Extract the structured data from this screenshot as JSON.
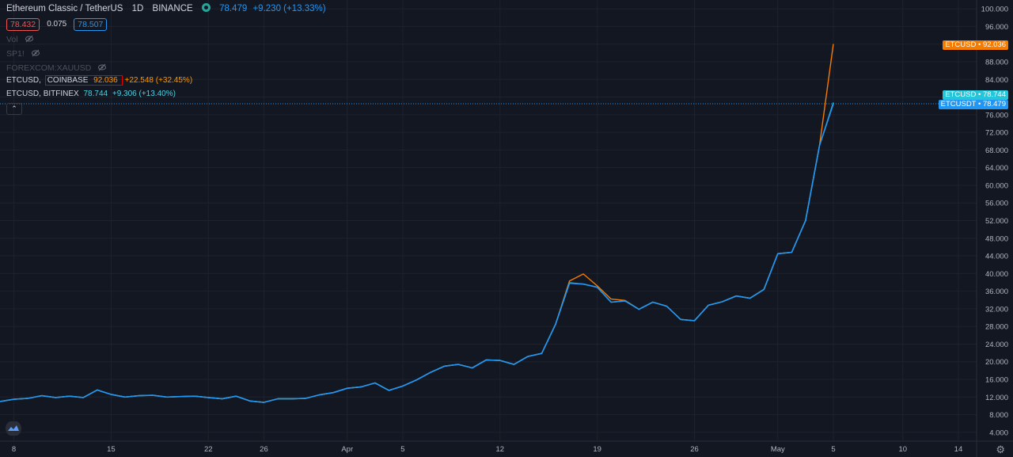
{
  "header": {
    "title": "Ethereum Classic / TetherUS",
    "interval": "1D",
    "exchange": "BINANCE",
    "last_price": "78.479",
    "change": "+9.230 (+13.33%)",
    "bid": "78.432",
    "spread": "0.075",
    "ask": "78.507"
  },
  "indicators": {
    "vol": "Vol",
    "sp1": "SP1!",
    "forex": "FOREXCOM:XAUUSD"
  },
  "compare": [
    {
      "symbol": "ETCUSD,",
      "exchange": "COINBASE",
      "price": "92.036",
      "change": "+22.548 (+32.45%)"
    },
    {
      "symbol": "ETCUSD,",
      "exchange": "BITFINEX",
      "price": "78.744",
      "change": "+9.306 (+13.40%)"
    }
  ],
  "scale_tags": [
    {
      "label": "ETCUSD",
      "value": "92.036",
      "color": "#f57c00"
    },
    {
      "label": "ETCUSD",
      "value": "78.744",
      "color": "#26c6da"
    },
    {
      "label": "ETCUSDT",
      "value": "78.479",
      "color": "#2196f3"
    }
  ],
  "chart_data": {
    "type": "line",
    "ylim": [
      2,
      102
    ],
    "yticks": [
      "100.000",
      "96.000",
      "92.000",
      "88.000",
      "84.000",
      "80.000",
      "76.000",
      "72.000",
      "68.000",
      "64.000",
      "60.000",
      "56.000",
      "52.000",
      "48.000",
      "44.000",
      "40.000",
      "36.000",
      "32.000",
      "28.000",
      "24.000",
      "20.000",
      "16.000",
      "12.000",
      "8.000",
      "4.000"
    ],
    "xlim": [
      0,
      61
    ],
    "xticks": [
      {
        "label": "8",
        "day": 1
      },
      {
        "label": "15",
        "day": 8
      },
      {
        "label": "22",
        "day": 15
      },
      {
        "label": "26",
        "day": 19
      },
      {
        "label": "Apr",
        "day": 25
      },
      {
        "label": "5",
        "day": 29
      },
      {
        "label": "12",
        "day": 36
      },
      {
        "label": "19",
        "day": 43
      },
      {
        "label": "26",
        "day": 50
      },
      {
        "label": "May",
        "day": 56
      },
      {
        "label": "5",
        "day": 60
      },
      {
        "label": "10",
        "day": 65
      },
      {
        "label": "14",
        "day": 69
      }
    ],
    "series": [
      {
        "color": "#2196f3",
        "values": [
          11.0,
          11.5,
          11.7,
          12.3,
          11.9,
          12.2,
          11.9,
          13.6,
          12.6,
          12.0,
          12.3,
          12.4,
          12.0,
          12.1,
          12.2,
          11.9,
          11.6,
          12.2,
          11.1,
          10.8,
          11.6,
          11.6,
          11.7,
          12.5,
          13.0,
          14.0,
          14.3,
          15.2,
          13.5,
          14.5,
          15.9,
          17.6,
          19.0,
          19.4,
          18.6,
          20.4,
          20.3,
          19.4,
          21.2,
          21.9,
          28.5,
          37.8,
          37.6,
          36.9,
          33.5,
          33.8,
          31.9,
          33.5,
          32.6,
          29.6,
          29.3,
          32.8,
          33.6,
          34.9,
          34.4,
          36.4,
          44.5,
          44.8,
          52.0,
          69.0,
          78.479
        ]
      },
      {
        "color": "#f57c00",
        "values": [
          11.0,
          11.5,
          11.7,
          12.3,
          11.9,
          12.2,
          11.9,
          13.6,
          12.6,
          12.0,
          12.3,
          12.4,
          12.0,
          12.1,
          12.2,
          11.9,
          11.6,
          12.2,
          11.1,
          10.8,
          11.6,
          11.6,
          11.7,
          12.5,
          13.0,
          14.0,
          14.3,
          15.2,
          13.5,
          14.5,
          15.9,
          17.6,
          19.0,
          19.4,
          18.6,
          20.4,
          20.3,
          19.4,
          21.2,
          21.9,
          28.5,
          38.3,
          39.9,
          37.2,
          34.2,
          33.9,
          31.9,
          33.5,
          32.6,
          29.6,
          29.3,
          32.8,
          33.6,
          34.9,
          34.4,
          36.4,
          44.5,
          44.8,
          52.0,
          69.0,
          92.036
        ]
      },
      {
        "color": "#26c6da",
        "values": [
          11.0,
          11.5,
          11.7,
          12.3,
          11.9,
          12.2,
          11.9,
          13.6,
          12.6,
          12.0,
          12.3,
          12.4,
          12.0,
          12.1,
          12.2,
          11.9,
          11.6,
          12.2,
          11.1,
          10.8,
          11.6,
          11.6,
          11.7,
          12.5,
          13.0,
          14.0,
          14.3,
          15.2,
          13.5,
          14.5,
          15.9,
          17.6,
          19.0,
          19.4,
          18.6,
          20.4,
          20.3,
          19.4,
          21.2,
          21.9,
          28.5,
          37.9,
          37.6,
          36.9,
          33.5,
          33.8,
          31.9,
          33.5,
          32.6,
          29.6,
          29.3,
          32.8,
          33.6,
          34.9,
          34.4,
          36.4,
          44.5,
          44.8,
          52.0,
          69.0,
          78.744
        ]
      }
    ],
    "grid": true
  }
}
